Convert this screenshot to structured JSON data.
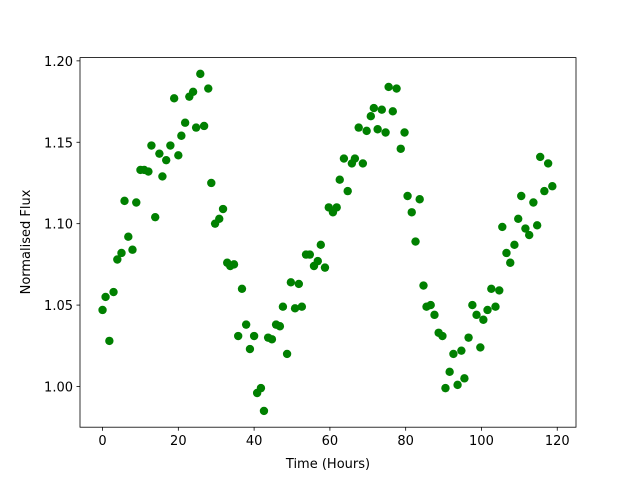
{
  "chart_data": {
    "type": "scatter",
    "x_label": "Time (Hours)",
    "y_label": "Normalised Flux",
    "color": "#008000",
    "x": [
      0,
      0.8,
      1.8,
      2.9,
      3.9,
      5,
      5.8,
      6.8,
      7.9,
      8.9,
      10,
      11,
      12.1,
      12.9,
      13.9,
      15,
      15.8,
      16.8,
      17.9,
      18.9,
      20,
      20.8,
      21.8,
      22.9,
      23.9,
      24.7,
      25.8,
      26.8,
      27.9,
      28.7,
      29.7,
      30.8,
      31.8,
      32.9,
      33.7,
      34.7,
      35.8,
      36.8,
      37.9,
      38.9,
      40,
      40.8,
      41.8,
      42.6,
      43.7,
      44.7,
      45.8,
      46.8,
      47.6,
      48.7,
      49.7,
      50.8,
      51.8,
      52.6,
      53.7,
      54.7,
      55.8,
      56.8,
      57.6,
      58.7,
      59.7,
      60.8,
      61.8,
      62.6,
      63.7,
      64.7,
      65.8,
      66.6,
      67.6,
      68.7,
      69.7,
      70.8,
      71.6,
      72.6,
      73.7,
      74.7,
      75.5,
      76.6,
      77.6,
      78.7,
      79.7,
      80.5,
      81.6,
      82.6,
      83.7,
      84.7,
      85.5,
      86.6,
      87.6,
      88.7,
      89.7,
      90.5,
      91.6,
      92.6,
      93.7,
      94.7,
      95.5,
      96.6,
      97.6,
      98.7,
      99.7,
      100.5,
      101.6,
      102.6,
      103.7,
      104.7,
      105.5,
      106.6,
      107.6,
      108.7,
      109.7,
      110.5,
      111.6,
      112.6,
      113.7,
      114.7,
      115.5,
      116.6,
      117.6,
      118.7
    ],
    "values": [
      1.047,
      1.055,
      1.028,
      1.058,
      1.078,
      1.082,
      1.114,
      1.092,
      1.084,
      1.113,
      1.133,
      1.133,
      1.132,
      1.148,
      1.104,
      1.143,
      1.129,
      1.139,
      1.148,
      1.177,
      1.142,
      1.154,
      1.162,
      1.178,
      1.181,
      1.159,
      1.192,
      1.16,
      1.183,
      1.125,
      1.1,
      1.103,
      1.109,
      1.076,
      1.074,
      1.075,
      1.031,
      1.06,
      1.038,
      1.023,
      1.031,
      0.996,
      0.999,
      0.985,
      1.03,
      1.029,
      1.038,
      1.037,
      1.049,
      1.02,
      1.064,
      1.048,
      1.063,
      1.049,
      1.081,
      1.081,
      1.074,
      1.077,
      1.087,
      1.073,
      1.11,
      1.107,
      1.11,
      1.127,
      1.14,
      1.12,
      1.137,
      1.14,
      1.159,
      1.137,
      1.157,
      1.166,
      1.171,
      1.158,
      1.17,
      1.156,
      1.184,
      1.169,
      1.183,
      1.146,
      1.156,
      1.117,
      1.107,
      1.089,
      1.115,
      1.062,
      1.049,
      1.05,
      1.044,
      1.033,
      1.031,
      0.999,
      1.009,
      1.02,
      1.001,
      1.022,
      1.005,
      1.03,
      1.05,
      1.044,
      1.024,
      1.041,
      1.047,
      1.06,
      1.049,
      1.059,
      1.098,
      1.082,
      1.076,
      1.087,
      1.103,
      1.117,
      1.097,
      1.093,
      1.113,
      1.099,
      1.141,
      1.12,
      1.137,
      1.123
    ],
    "xlim": [
      -5.95,
      124.95
    ],
    "ylim": [
      0.975,
      1.202
    ],
    "xticks": [
      0,
      20,
      40,
      60,
      80,
      100,
      120
    ],
    "yticks": [
      {
        "value": 1.0,
        "label": "1.00"
      },
      1.05,
      {
        "value": 1.1,
        "label": "1.10"
      },
      1.15,
      {
        "value": 1.2,
        "label": "1.20"
      }
    ]
  }
}
